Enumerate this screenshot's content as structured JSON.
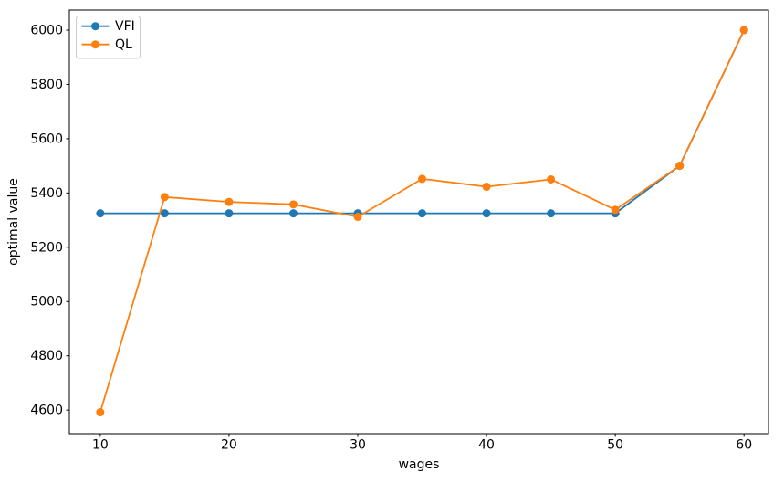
{
  "figure": {
    "background": "#ffffff",
    "text_color": "#000000",
    "spine_color": "#000000",
    "legend_border_color": "#cccccc"
  },
  "chart_data": {
    "type": "line",
    "title": "",
    "xlabel": "wages",
    "ylabel": "optimal value",
    "x": [
      10,
      15,
      20,
      25,
      30,
      35,
      40,
      45,
      50,
      55,
      60
    ],
    "series": [
      {
        "name": "VFI",
        "color": "#1f77b4",
        "marker": "circle",
        "values": [
          5325,
          5325,
          5325,
          5325,
          5325,
          5325,
          5325,
          5325,
          5325,
          5500,
          6000
        ]
      },
      {
        "name": "QL",
        "color": "#ff7f0e",
        "marker": "circle",
        "values": [
          4592,
          5385,
          5367,
          5358,
          5312,
          5452,
          5423,
          5450,
          5338,
          5500,
          6000
        ]
      }
    ],
    "xticks": [
      10,
      20,
      30,
      40,
      50,
      60
    ],
    "yticks": [
      4600,
      4800,
      5000,
      5200,
      5400,
      5600,
      5800,
      6000
    ],
    "xlim": [
      7.6,
      61.9
    ],
    "ylim": [
      4513,
      6074
    ],
    "grid": false,
    "legend_position": "upper left",
    "legend_labels": [
      "VFI",
      "QL"
    ]
  }
}
